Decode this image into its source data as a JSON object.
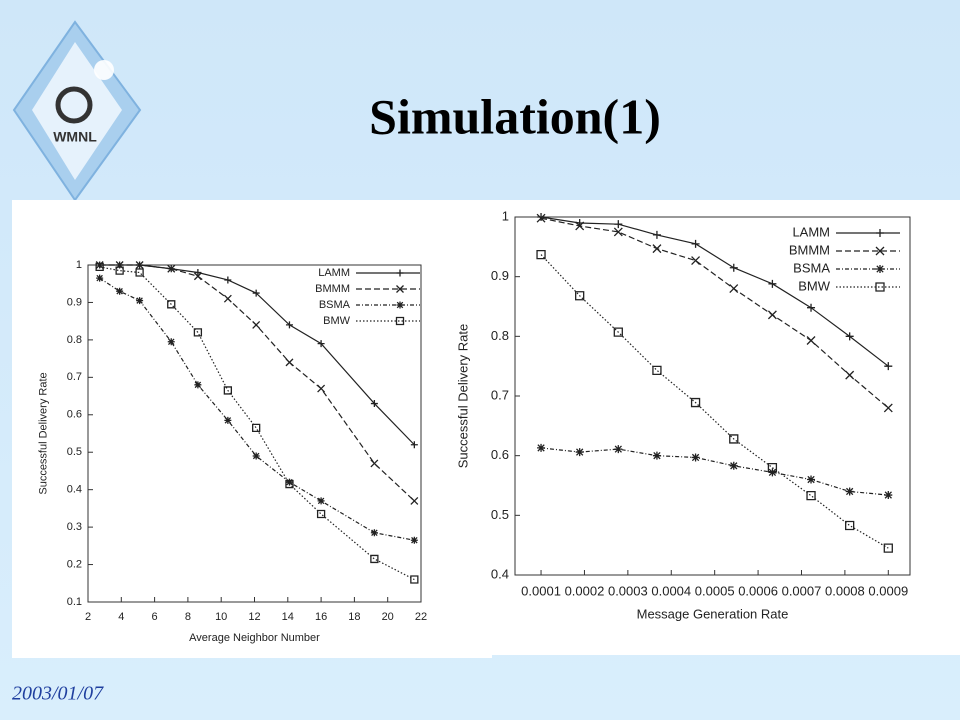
{
  "slide": {
    "title": "Simulation(1)",
    "date": "2003/01/07",
    "logo": "WMNL"
  },
  "chart_data": [
    {
      "type": "line",
      "x_label": "Average Neighbor Number",
      "y_label": "Successful Delivery Rate",
      "x": [
        2.7,
        3.9,
        5.1,
        7.0,
        8.6,
        10.4,
        12.1,
        14.1,
        16.0,
        19.2,
        21.6
      ],
      "xlim": [
        2,
        22
      ],
      "xticks": [
        2,
        4,
        6,
        8,
        10,
        12,
        14,
        16,
        18,
        20,
        22
      ],
      "ylim": [
        0.1,
        1
      ],
      "yticks": [
        0.1,
        0.2,
        0.3,
        0.4,
        0.5,
        0.6,
        0.7,
        0.8,
        0.9,
        1
      ],
      "series": [
        {
          "name": "LAMM",
          "color": "#222222",
          "marker": "plus",
          "dash": "solid",
          "values": [
            1,
            1,
            1,
            0.99,
            0.98,
            0.96,
            0.925,
            0.84,
            0.79,
            0.63,
            0.52
          ]
        },
        {
          "name": "BMMM",
          "color": "#222222",
          "marker": "cross",
          "dash": "dashed",
          "values": [
            1,
            1,
            1,
            0.99,
            0.97,
            0.91,
            0.84,
            0.74,
            0.67,
            0.47,
            0.37
          ]
        },
        {
          "name": "BSMA",
          "color": "#222222",
          "marker": "star",
          "dash": "dashdot",
          "values": [
            0.965,
            0.93,
            0.905,
            0.795,
            0.68,
            0.585,
            0.49,
            0.42,
            0.37,
            0.285,
            0.265
          ]
        },
        {
          "name": "BMW",
          "color": "#222222",
          "marker": "square",
          "dash": "dotted",
          "values": [
            0.995,
            0.985,
            0.98,
            0.895,
            0.82,
            0.665,
            0.565,
            0.415,
            0.335,
            0.215,
            0.16
          ]
        }
      ]
    },
    {
      "type": "line",
      "x_label": "Message Generation Rate",
      "y_label": "Successful Delivery Rate",
      "x": [
        0.0001,
        0.000189,
        0.000278,
        0.000367,
        0.000456,
        0.000544,
        0.000633,
        0.000722,
        0.000811,
        0.0009
      ],
      "xlim": [
        4e-05,
        0.00095
      ],
      "xticks": [
        0.0001,
        0.0002,
        0.0003,
        0.0004,
        0.0005,
        0.0006,
        0.0007,
        0.0008,
        0.0009
      ],
      "ylim": [
        0.4,
        1
      ],
      "yticks": [
        0.4,
        0.5,
        0.6,
        0.7,
        0.8,
        0.9,
        1
      ],
      "series": [
        {
          "name": "LAMM",
          "color": "#222222",
          "marker": "plus",
          "dash": "solid",
          "values": [
            1,
            0.99,
            0.988,
            0.97,
            0.955,
            0.915,
            0.888,
            0.848,
            0.8,
            0.75
          ]
        },
        {
          "name": "BMMM",
          "color": "#222222",
          "marker": "cross",
          "dash": "dashed",
          "values": [
            0.998,
            0.985,
            0.975,
            0.947,
            0.927,
            0.88,
            0.836,
            0.793,
            0.735,
            0.68
          ]
        },
        {
          "name": "BSMA",
          "color": "#222222",
          "marker": "star",
          "dash": "dashdot",
          "values": [
            0.613,
            0.606,
            0.611,
            0.6,
            0.597,
            0.583,
            0.572,
            0.56,
            0.54,
            0.534
          ]
        },
        {
          "name": "BMW",
          "color": "#222222",
          "marker": "square",
          "dash": "dotted",
          "values": [
            0.937,
            0.868,
            0.807,
            0.743,
            0.689,
            0.628,
            0.58,
            0.533,
            0.483,
            0.445
          ]
        }
      ]
    }
  ]
}
